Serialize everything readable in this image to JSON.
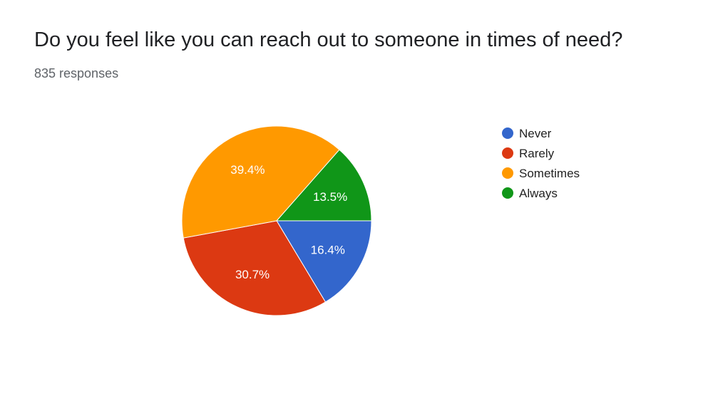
{
  "title": "Do you feel like you can reach out to someone in times of need?",
  "subtitle": "835 responses",
  "chart_data": {
    "type": "pie",
    "title": "Do you feel like you can reach out to someone in times of need?",
    "categories": [
      "Never",
      "Rarely",
      "Sometimes",
      "Always"
    ],
    "values": [
      16.4,
      30.7,
      39.4,
      13.5
    ],
    "labels": [
      "16.4%",
      "30.7%",
      "39.4%",
      "13.5%"
    ],
    "colors": [
      "#3366cc",
      "#dc3912",
      "#ff9900",
      "#109618"
    ],
    "legend_position": "right"
  }
}
